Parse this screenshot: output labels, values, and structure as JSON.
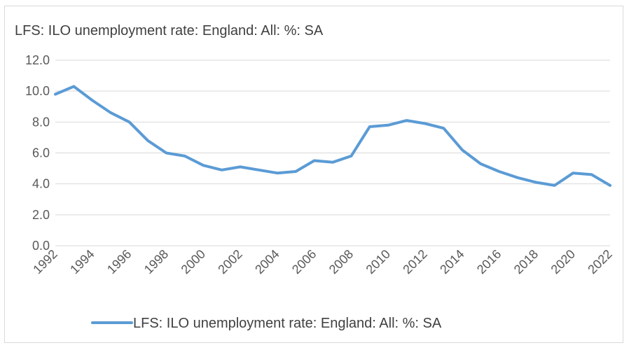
{
  "chart_data": {
    "type": "line",
    "title": "LFS: ILO unemployment rate: England: All: %: SA",
    "xlabel": "",
    "ylabel": "",
    "x": [
      1992,
      1993,
      1994,
      1995,
      1996,
      1997,
      1998,
      1999,
      2000,
      2001,
      2002,
      2003,
      2004,
      2005,
      2006,
      2007,
      2008,
      2009,
      2010,
      2011,
      2012,
      2013,
      2014,
      2015,
      2016,
      2017,
      2018,
      2019,
      2020,
      2021,
      2022
    ],
    "x_tick_labels": [
      "1992",
      "1994",
      "1996",
      "1998",
      "2000",
      "2002",
      "2004",
      "2006",
      "2008",
      "2010",
      "2012",
      "2014",
      "2016",
      "2018",
      "2020",
      "2022"
    ],
    "y_tick_labels": [
      "0.0",
      "2.0",
      "4.0",
      "6.0",
      "8.0",
      "10.0",
      "12.0"
    ],
    "ylim": [
      0,
      12
    ],
    "grid": true,
    "legend_position": "bottom",
    "series": [
      {
        "name": "LFS: ILO unemployment rate: England: All: %: SA",
        "color": "#5b9bd5",
        "values": [
          9.8,
          10.3,
          9.4,
          8.6,
          8.0,
          6.8,
          6.0,
          5.8,
          5.2,
          4.9,
          5.1,
          4.9,
          4.7,
          4.8,
          5.5,
          5.4,
          5.8,
          7.7,
          7.8,
          8.1,
          7.9,
          7.6,
          6.2,
          5.3,
          4.8,
          4.4,
          4.1,
          3.9,
          4.7,
          4.6,
          3.9
        ]
      }
    ]
  }
}
